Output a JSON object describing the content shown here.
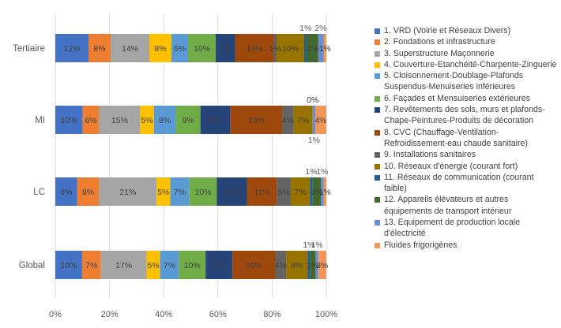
{
  "chart_data": {
    "type": "bar",
    "orientation": "horizontal",
    "stacked": "percent",
    "title": "",
    "xlabel": "",
    "ylabel": "",
    "xlim": [
      0,
      100
    ],
    "grid": true,
    "legend_position": "right",
    "categories": [
      "Tertiaire",
      "MI",
      "LC",
      "Global"
    ],
    "x_ticks": [
      "0%",
      "20%",
      "40%",
      "60%",
      "80%",
      "100%"
    ],
    "series": [
      {
        "name": "1. VRD (Voirie et Réseaux Divers)",
        "color": "#4472C4",
        "values": [
          12,
          10,
          8,
          10
        ],
        "labels": [
          "12%",
          "10%",
          "8%",
          "10%"
        ],
        "label_style": [
          "in",
          "in",
          "in",
          "in"
        ]
      },
      {
        "name": "2. Fondations et infrastructure",
        "color": "#ED7D31",
        "values": [
          8,
          6,
          8,
          7
        ],
        "labels": [
          "8%",
          "6%",
          "8%",
          "7%"
        ],
        "label_style": [
          "in",
          "in",
          "in",
          "in"
        ]
      },
      {
        "name": "3. Superstructure Maçonnerie",
        "color": "#A5A5A5",
        "values": [
          14,
          15,
          21,
          17
        ],
        "labels": [
          "14%",
          "15%",
          "21%",
          "17%"
        ],
        "label_style": [
          "in",
          "in",
          "in",
          "in"
        ]
      },
      {
        "name": "4. Couverture-Etanchéité-Charpente-Zinguerie",
        "color": "#FFC000",
        "values": [
          8,
          5,
          5,
          5
        ],
        "labels": [
          "8%",
          "5%",
          "5%",
          "5%"
        ],
        "label_style": [
          "in",
          "in",
          "in",
          "in"
        ]
      },
      {
        "name": "5. Cloisonnement-Doublage-Plafonds Suspendus-Menuiseries inférieures",
        "color": "#5B9BD5",
        "values": [
          6,
          8,
          7,
          7
        ],
        "labels": [
          "6%",
          "8%",
          "7%",
          "7%"
        ],
        "label_style": [
          "in",
          "in",
          "in",
          "in"
        ]
      },
      {
        "name": "6. Façades et Mensuiseries extérieures",
        "color": "#70AD47",
        "values": [
          10,
          9,
          10,
          10
        ],
        "labels": [
          "10%",
          "9%",
          "10%",
          "10%"
        ],
        "label_style": [
          "in",
          "in",
          "in",
          "in"
        ]
      },
      {
        "name": "7. Revêtements des sols, murs et plafonds-Chape-Peintures-Produits de décoration",
        "color": "#264478",
        "values": [
          7,
          11,
          11,
          10
        ],
        "labels": [
          "7%",
          "11%",
          "11%",
          "10%"
        ],
        "label_style": [
          "in",
          "in",
          "in",
          "in"
        ]
      },
      {
        "name": "8. CVC (Chauffage-Ventilation-Refroidissement-eau chaude sanitaire)",
        "color": "#9E480E",
        "values": [
          14,
          19,
          11,
          16
        ],
        "labels": [
          "14%",
          "19%",
          "11%",
          "16%"
        ],
        "label_style": [
          "in",
          "in",
          "in",
          "in"
        ]
      },
      {
        "name": "9. Installations sanitaires",
        "color": "#636363",
        "values": [
          1,
          4,
          5,
          4
        ],
        "labels": [
          "1%",
          "4%",
          "5%",
          "4%"
        ],
        "label_style": [
          "in",
          "in",
          "in",
          "in"
        ]
      },
      {
        "name": "10. Réseaux d'énergie (courant fort)",
        "color": "#997300",
        "values": [
          10,
          7,
          7,
          8
        ],
        "labels": [
          "10%",
          "7%",
          "7%",
          "8%"
        ],
        "label_style": [
          "in",
          "in",
          "in",
          "in"
        ]
      },
      {
        "name": "11. Réseaux de communication (courant faible)",
        "color": "#255E91",
        "values": [
          1,
          0,
          1,
          1
        ],
        "labels": [
          "1%",
          "0%",
          "1%",
          "1%"
        ],
        "label_style": [
          "above",
          "above",
          "above",
          "above"
        ]
      },
      {
        "name": "12. Appareils élévateurs et autres équipements de transport intérieur",
        "color": "#43682B",
        "values": [
          4,
          0,
          3,
          2
        ],
        "labels": [
          "4%",
          "0%",
          "3%",
          "2%"
        ],
        "label_style": [
          "in",
          "above",
          "in",
          "in"
        ]
      },
      {
        "name": "13. Equipement de production locale d'électricité",
        "color": "#698ED0",
        "values": [
          2,
          1,
          1,
          1
        ],
        "labels": [
          "2%",
          "1%",
          "1%",
          "1%"
        ],
        "label_style": [
          "above",
          "below",
          "above",
          "above"
        ]
      },
      {
        "name": "Fluides frigorigènes",
        "color": "#F1975A",
        "values": [
          1,
          4,
          1,
          3
        ],
        "labels": [
          "1%",
          "4%",
          "1%",
          "3%"
        ],
        "label_style": [
          "in",
          "in",
          "in",
          "in"
        ]
      }
    ]
  }
}
